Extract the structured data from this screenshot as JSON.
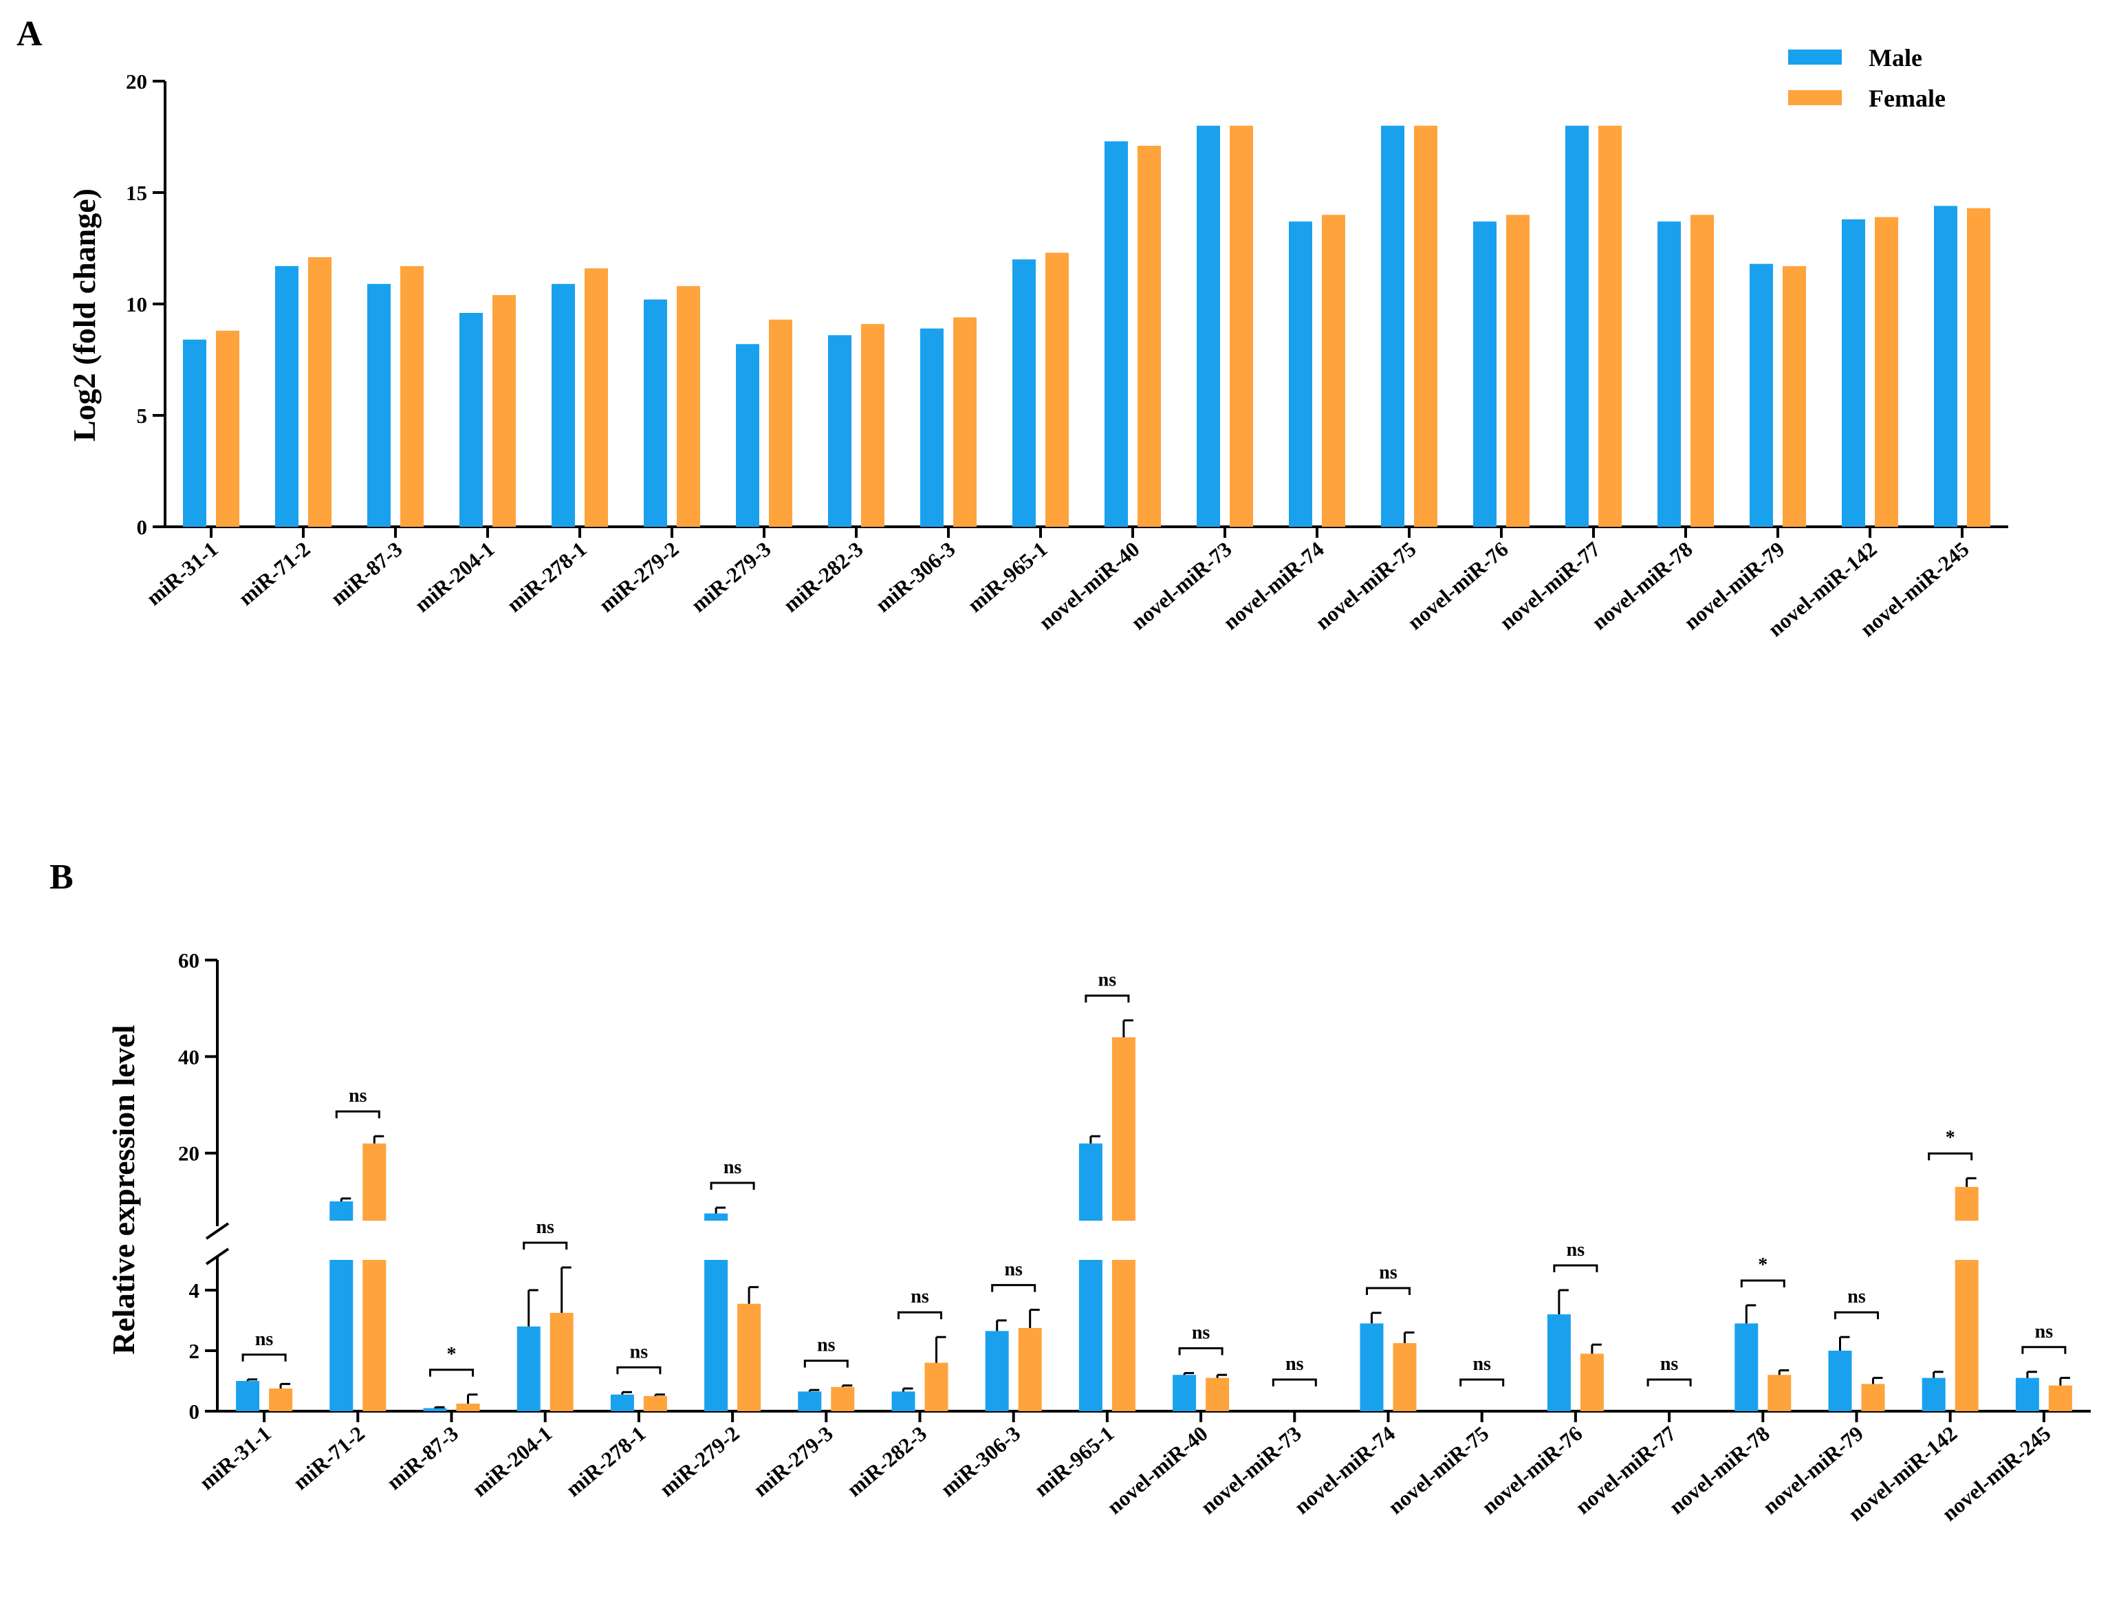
{
  "colors": {
    "male": "#1aa1ee",
    "female": "#ffa33c",
    "axis": "#000000"
  },
  "legend": {
    "male": "Male",
    "female": "Female"
  },
  "chart_data": [
    {
      "panel": "A",
      "type": "bar",
      "ylabel": "Log2 (fold change)",
      "xlabel": "",
      "ylim": [
        0,
        20
      ],
      "yticks": [
        "0",
        "5",
        "10",
        "15",
        "20"
      ],
      "legend_position": "top-right",
      "categories": [
        "miR-31-1",
        "miR-71-2",
        "miR-87-3",
        "miR-204-1",
        "miR-278-1",
        "miR-279-2",
        "miR-279-3",
        "miR-282-3",
        "miR-306-3",
        "miR-965-1",
        "novel-miR-40",
        "novel-miR-73",
        "novel-miR-74",
        "novel-miR-75",
        "novel-miR-76",
        "novel-miR-77",
        "novel-miR-78",
        "novel-miR-79",
        "novel-miR-142",
        "novel-miR-245"
      ],
      "series": [
        {
          "name": "Male",
          "values": [
            8.4,
            11.7,
            10.9,
            9.6,
            10.9,
            10.2,
            8.2,
            8.6,
            8.9,
            12.0,
            17.3,
            18.0,
            13.7,
            18.0,
            13.7,
            18.0,
            13.7,
            11.8,
            13.8,
            14.4
          ]
        },
        {
          "name": "Female",
          "values": [
            8.8,
            12.1,
            11.7,
            10.4,
            11.6,
            10.8,
            9.3,
            9.1,
            9.4,
            12.3,
            17.1,
            18.0,
            14.0,
            18.0,
            14.0,
            18.0,
            14.0,
            11.7,
            13.9,
            14.3
          ]
        }
      ]
    },
    {
      "panel": "B",
      "type": "bar",
      "ylabel": "Relative expression level",
      "xlabel": "",
      "ylim": [
        0,
        60
      ],
      "axis_break": [
        5,
        6
      ],
      "yticks_lower": [
        "0",
        "2",
        "4"
      ],
      "yticks_upper": [
        "20",
        "40",
        "60"
      ],
      "categories": [
        "miR-31-1",
        "miR-71-2",
        "miR-87-3",
        "miR-204-1",
        "miR-278-1",
        "miR-279-2",
        "miR-279-3",
        "miR-282-3",
        "miR-306-3",
        "miR-965-1",
        "novel-miR-40",
        "novel-miR-73",
        "novel-miR-74",
        "novel-miR-75",
        "novel-miR-76",
        "novel-miR-77",
        "novel-miR-78",
        "novel-miR-79",
        "novel-miR-142",
        "novel-miR-245"
      ],
      "series": [
        {
          "name": "Male",
          "values": [
            1.0,
            10.0,
            0.1,
            2.8,
            0.55,
            7.5,
            0.65,
            0.65,
            2.65,
            22.0,
            1.2,
            0,
            2.9,
            0,
            3.2,
            0,
            2.9,
            2.0,
            1.1,
            1.1
          ],
          "errors": [
            0.05,
            0.6,
            0.03,
            1.2,
            0.08,
            1.2,
            0.05,
            0.1,
            0.35,
            1.5,
            0.06,
            0,
            0.35,
            0,
            0.8,
            0,
            0.6,
            0.45,
            0.2,
            0.2
          ]
        },
        {
          "name": "Female",
          "values": [
            0.75,
            22.0,
            0.25,
            3.25,
            0.5,
            3.55,
            0.8,
            1.6,
            2.75,
            44.0,
            1.1,
            0,
            2.25,
            0,
            1.9,
            0,
            1.2,
            0.9,
            13.0,
            0.85
          ],
          "errors": [
            0.15,
            1.5,
            0.3,
            1.5,
            0.05,
            0.55,
            0.05,
            0.85,
            0.6,
            3.5,
            0.1,
            0,
            0.35,
            0,
            0.3,
            0,
            0.15,
            0.2,
            1.8,
            0.25
          ]
        }
      ],
      "significance": [
        "ns",
        "ns",
        "*",
        "ns",
        "ns",
        "ns",
        "ns",
        "ns",
        "ns",
        "ns",
        "ns",
        "ns",
        "ns",
        "ns",
        "ns",
        "ns",
        "*",
        "ns",
        "*",
        "ns"
      ]
    }
  ]
}
